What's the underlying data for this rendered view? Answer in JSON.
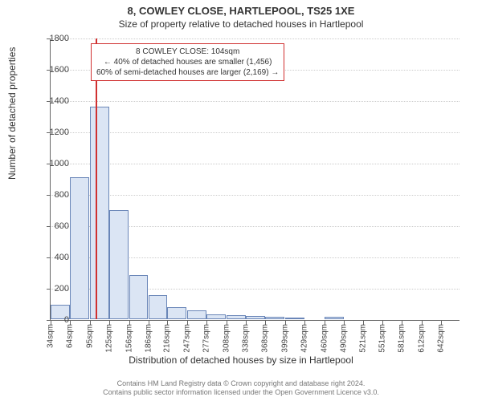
{
  "title": "8, COWLEY CLOSE, HARTLEPOOL, TS25 1XE",
  "subtitle": "Size of property relative to detached houses in Hartlepool",
  "y_axis_label": "Number of detached properties",
  "x_axis_label": "Distribution of detached houses by size in Hartlepool",
  "footer_line1": "Contains HM Land Registry data © Crown copyright and database right 2024.",
  "footer_line2": "Contains public sector information licensed under the Open Government Licence v3.0.",
  "annotation": {
    "line1": "8 COWLEY CLOSE: 104sqm",
    "line2": "← 40% of detached houses are smaller (1,456)",
    "line3": "60% of semi-detached houses are larger (2,169) →"
  },
  "chart": {
    "type": "histogram",
    "ylim": [
      0,
      1800
    ],
    "ytick_step": 200,
    "background_color": "#ffffff",
    "grid_color": "#cccccc",
    "axis_color": "#666666",
    "bar_fill": "#dbe5f4",
    "bar_border": "#6a86b8",
    "ref_line_color": "#d03030",
    "ref_line_x": 104,
    "bar_width_sqm": 30,
    "x_start": 34,
    "x_ticks": [
      "34sqm",
      "64sqm",
      "95sqm",
      "125sqm",
      "156sqm",
      "186sqm",
      "216sqm",
      "247sqm",
      "277sqm",
      "308sqm",
      "338sqm",
      "368sqm",
      "399sqm",
      "429sqm",
      "460sqm",
      "490sqm",
      "521sqm",
      "551sqm",
      "581sqm",
      "612sqm",
      "642sqm"
    ],
    "bars": [
      {
        "x": 34,
        "value": 90
      },
      {
        "x": 64,
        "value": 910
      },
      {
        "x": 95,
        "value": 1360
      },
      {
        "x": 125,
        "value": 700
      },
      {
        "x": 156,
        "value": 280
      },
      {
        "x": 186,
        "value": 155
      },
      {
        "x": 216,
        "value": 75
      },
      {
        "x": 247,
        "value": 55
      },
      {
        "x": 277,
        "value": 30
      },
      {
        "x": 308,
        "value": 25
      },
      {
        "x": 338,
        "value": 20
      },
      {
        "x": 368,
        "value": 15
      },
      {
        "x": 399,
        "value": 2
      },
      {
        "x": 429,
        "value": 0
      },
      {
        "x": 460,
        "value": 15
      },
      {
        "x": 490,
        "value": 0
      },
      {
        "x": 521,
        "value": 0
      },
      {
        "x": 551,
        "value": 0
      },
      {
        "x": 581,
        "value": 0
      },
      {
        "x": 612,
        "value": 0
      },
      {
        "x": 642,
        "value": 0
      }
    ],
    "title_fontsize": 13,
    "subtitle_fontsize": 12,
    "tick_fontsize": 11,
    "annotation_fontsize": 10
  }
}
